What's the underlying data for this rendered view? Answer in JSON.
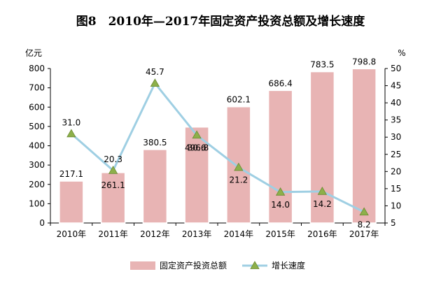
{
  "chart_data": {
    "type": "bar",
    "title": "图8　2010年—2017年固定资产投资总额及增长速度",
    "left_unit": "亿元",
    "right_unit": "%",
    "categories": [
      "2010年",
      "2011年",
      "2012年",
      "2013年",
      "2014年",
      "2015年",
      "2016年",
      "2017年"
    ],
    "series": [
      {
        "name": "固定资产投资总额",
        "type": "bar",
        "axis": "left",
        "color": "#e8b4b4",
        "values": [
          217.1,
          261.1,
          380.5,
          496.8,
          602.1,
          686.4,
          783.5,
          798.8
        ],
        "labels": [
          "217.1",
          "261.1",
          "380.5",
          "496.8",
          "602.1",
          "686.4",
          "783.5",
          "798.8"
        ]
      },
      {
        "name": "增长速度",
        "type": "line",
        "axis": "right",
        "color": "#9fcfe3",
        "marker_color": "#8db04a",
        "values": [
          31.0,
          20.3,
          45.7,
          30.6,
          21.2,
          14.0,
          14.2,
          8.2
        ],
        "labels": [
          "31.0",
          "20.3",
          "45.7",
          "30.6",
          "21.2",
          "14.0",
          "14.2",
          "8.2"
        ]
      }
    ],
    "y_left": {
      "min": 0,
      "max": 800,
      "step": 100
    },
    "y_right": {
      "min": 5,
      "max": 50,
      "step": 5
    },
    "grid": false,
    "legend_position": "bottom"
  }
}
